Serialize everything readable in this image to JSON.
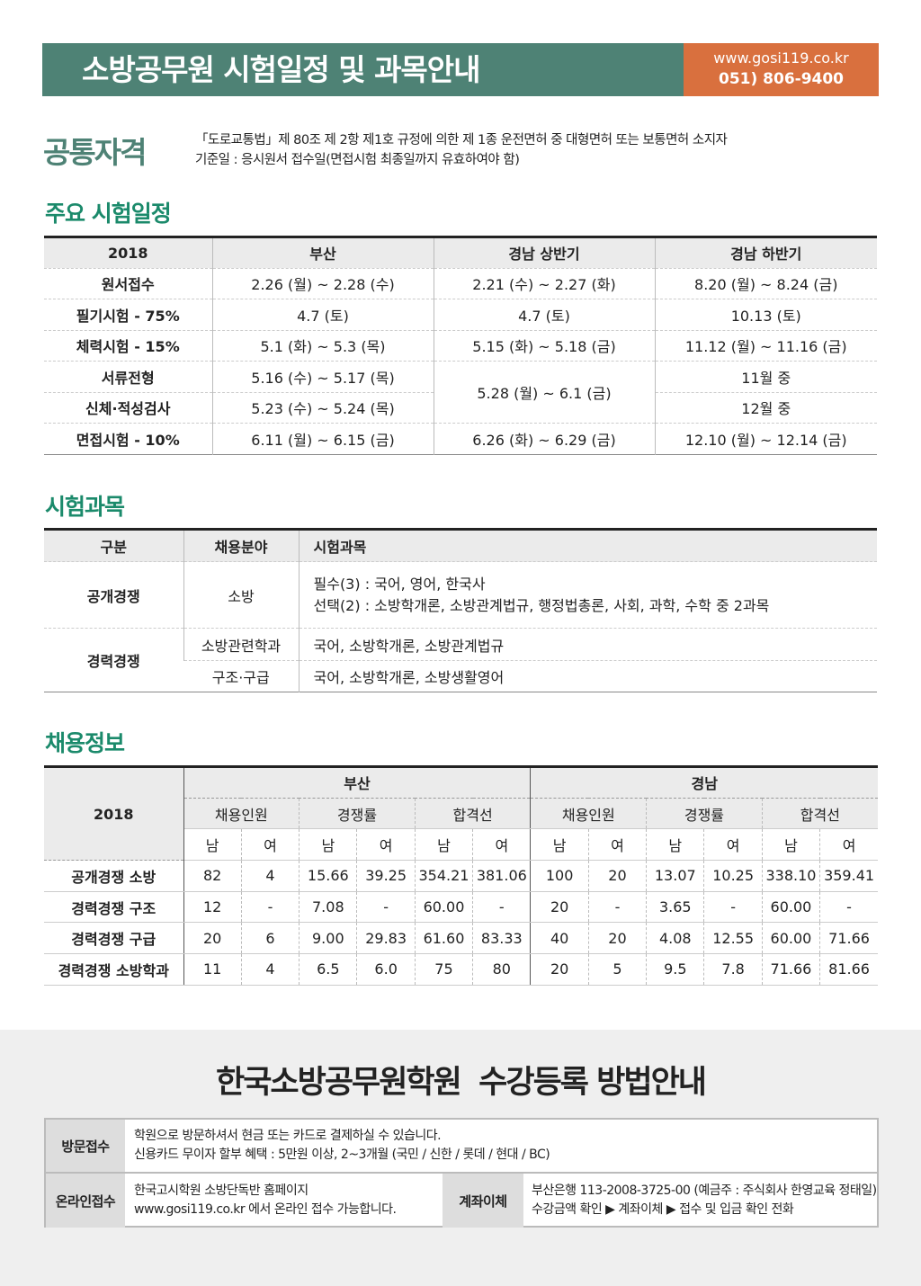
{
  "header": {
    "title": "소방공무원 시험일정 및 과목안내",
    "website": "www.gosi119.co.kr",
    "phone": "051) 806-9400"
  },
  "colors": {
    "header_green": "#4e8275",
    "header_orange": "#d9703e",
    "heading_green": "#1b8a6b"
  },
  "qualification": {
    "label": "공통자격",
    "line1": "「도로교통법」제 80조 제 2항 제1호 규정에 의한 제 1종 운전면허 중 대형면허 또는 보통면허 소지자",
    "line2": "기준일 : 응시원서 접수일(면접시험 최종일까지 유효하여야 함)"
  },
  "schedule": {
    "heading": "주요 시험일정",
    "headers": [
      "2018",
      "부산",
      "경남 상반기",
      "경남 하반기"
    ],
    "rows": [
      [
        "원서접수",
        "2.26 (월) ~ 2.28 (수)",
        "2.21 (수) ~ 2.27 (화)",
        "8.20 (월) ~ 8.24 (금)"
      ],
      [
        "필기시험 - 75%",
        "4.7 (토)",
        "4.7 (토)",
        "10.13 (토)"
      ],
      [
        "체력시험 - 15%",
        "5.1 (화) ~ 5.3 (목)",
        "5.15 (화) ~ 5.18 (금)",
        "11.12 (월) ~ 11.16 (금)"
      ],
      [
        "서류전형",
        "5.16 (수) ~ 5.17 (목)",
        "5.28 (월) ~ 6.1 (금)",
        "11월 중"
      ],
      [
        "신체·적성검사",
        "5.23 (수) ~ 5.24 (목)",
        "",
        "12월 중"
      ],
      [
        "면접시험 - 10%",
        "6.11 (월) ~ 6.15 (금)",
        "6.26 (화) ~ 6.29 (금)",
        "12.10 (월) ~ 12.14 (금)"
      ]
    ]
  },
  "subjects": {
    "heading": "시험과목",
    "headers": [
      "구분",
      "채용분야",
      "시험과목"
    ],
    "open": {
      "type": "공개경쟁",
      "field": "소방",
      "line1": "필수(3) : 국어, 영어, 한국사",
      "line2": "선택(2) : 소방학개론, 소방관계법규, 행정법총론, 사회, 과학, 수학 중 2과목"
    },
    "career": {
      "type": "경력경쟁",
      "rows": [
        {
          "field": "소방관련학과",
          "subjects": "국어, 소방학개론, 소방관계법규"
        },
        {
          "field": "구조·구급",
          "subjects": "국어, 소방학개론, 소방생활영어"
        }
      ]
    }
  },
  "recruit": {
    "heading": "채용정보",
    "year": "2018",
    "regions": [
      "부산",
      "경남"
    ],
    "groups": [
      "채용인원",
      "경쟁률",
      "합격선"
    ],
    "genders": [
      "남",
      "여"
    ],
    "rows": [
      {
        "label": "공개경쟁 소방",
        "values": [
          "82",
          "4",
          "15.66",
          "39.25",
          "354.21",
          "381.06",
          "100",
          "20",
          "13.07",
          "10.25",
          "338.10",
          "359.41"
        ]
      },
      {
        "label": "경력경쟁 구조",
        "values": [
          "12",
          "-",
          "7.08",
          "-",
          "60.00",
          "-",
          "20",
          "-",
          "3.65",
          "-",
          "60.00",
          "-"
        ]
      },
      {
        "label": "경력경쟁 구급",
        "values": [
          "20",
          "6",
          "9.00",
          "29.83",
          "61.60",
          "83.33",
          "40",
          "20",
          "4.08",
          "12.55",
          "60.00",
          "71.66"
        ]
      },
      {
        "label": "경력경쟁 소방학과",
        "values": [
          "11",
          "4",
          "6.5",
          "6.0",
          "75",
          "80",
          "20",
          "5",
          "9.5",
          "7.8",
          "71.66",
          "81.66"
        ]
      }
    ]
  },
  "registration": {
    "title": "한국소방공무원학원  수강등록 방법안내",
    "visit": {
      "label": "방문접수",
      "line1": "학원으로 방문하셔서 현금 또는 카드로 결제하실 수 있습니다.",
      "line2": "신용카드 무이자 할부 혜택 : 5만원 이상, 2~3개월 (국민 / 신한 / 롯데 / 현대 / BC)"
    },
    "online": {
      "label": "온라인접수",
      "line1": "한국고시학원 소방단독반 홈페이지",
      "line2": "www.gosi119.co.kr 에서 온라인 접수 가능합니다."
    },
    "transfer": {
      "label": "계좌이체",
      "line1": "부산은행 113-2008-3725-00 (예금주 : 주식회사 한영교육 정태일)",
      "line2": "수강금액 확인  ▶  계좌이체  ▶  접수 및 입금 확인 전화"
    }
  }
}
